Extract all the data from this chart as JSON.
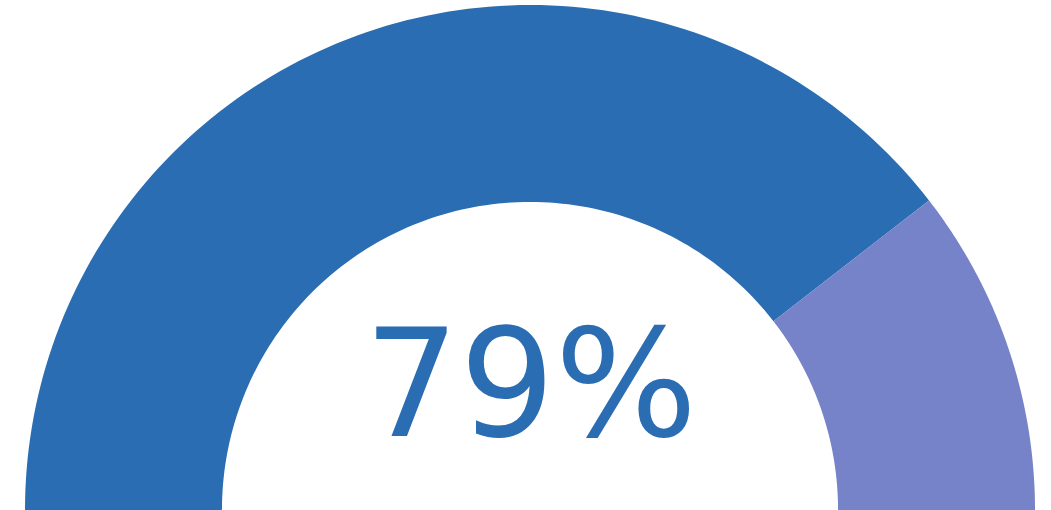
{
  "chart_data": {
    "type": "donut",
    "categories": [
      null,
      null
    ],
    "values": [
      79,
      21
    ],
    "colors": [
      "#2a6db2",
      "#7783c8"
    ],
    "value_labels": [
      "79%",
      null
    ]
  }
}
